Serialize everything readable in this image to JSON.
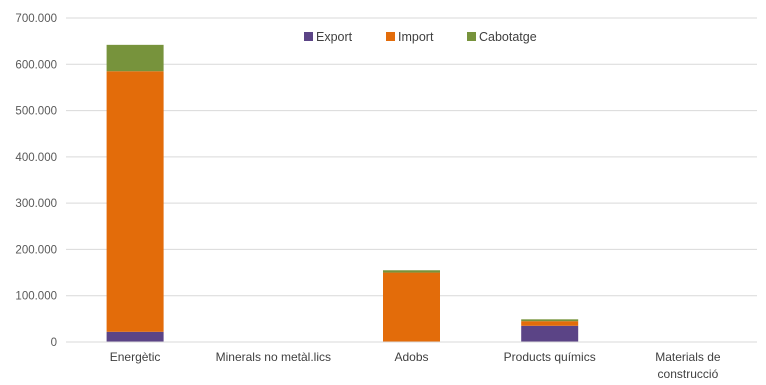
{
  "chart_data": {
    "type": "bar",
    "stacked": true,
    "categories": [
      "Energètic",
      "Minerals no metàl.lics",
      "Adobs",
      "Products químics",
      "Materials de construcció"
    ],
    "category_label_lines": [
      [
        "Energètic"
      ],
      [
        "Minerals no metàl.lics"
      ],
      [
        "Adobs"
      ],
      [
        "Products químics"
      ],
      [
        "Materials de",
        "construcció"
      ]
    ],
    "series": [
      {
        "name": "Export",
        "color": "#5b4486",
        "values": [
          22000,
          0,
          0,
          35000,
          0
        ]
      },
      {
        "name": "Import",
        "color": "#e36c0a",
        "values": [
          563000,
          0,
          150000,
          10000,
          0
        ]
      },
      {
        "name": "Cabotatge",
        "color": "#77933c",
        "values": [
          57000,
          0,
          5000,
          4000,
          0
        ]
      }
    ],
    "ylim": [
      0,
      700000
    ],
    "yticks": [
      0,
      100000,
      200000,
      300000,
      400000,
      500000,
      600000,
      700000
    ],
    "ytick_labels": [
      "0",
      "100.000",
      "200.000",
      "300.000",
      "400.000",
      "500.000",
      "600.000",
      "700.000"
    ],
    "grid": true,
    "legend_position": "top-center",
    "title": "",
    "xlabel": "",
    "ylabel": ""
  }
}
